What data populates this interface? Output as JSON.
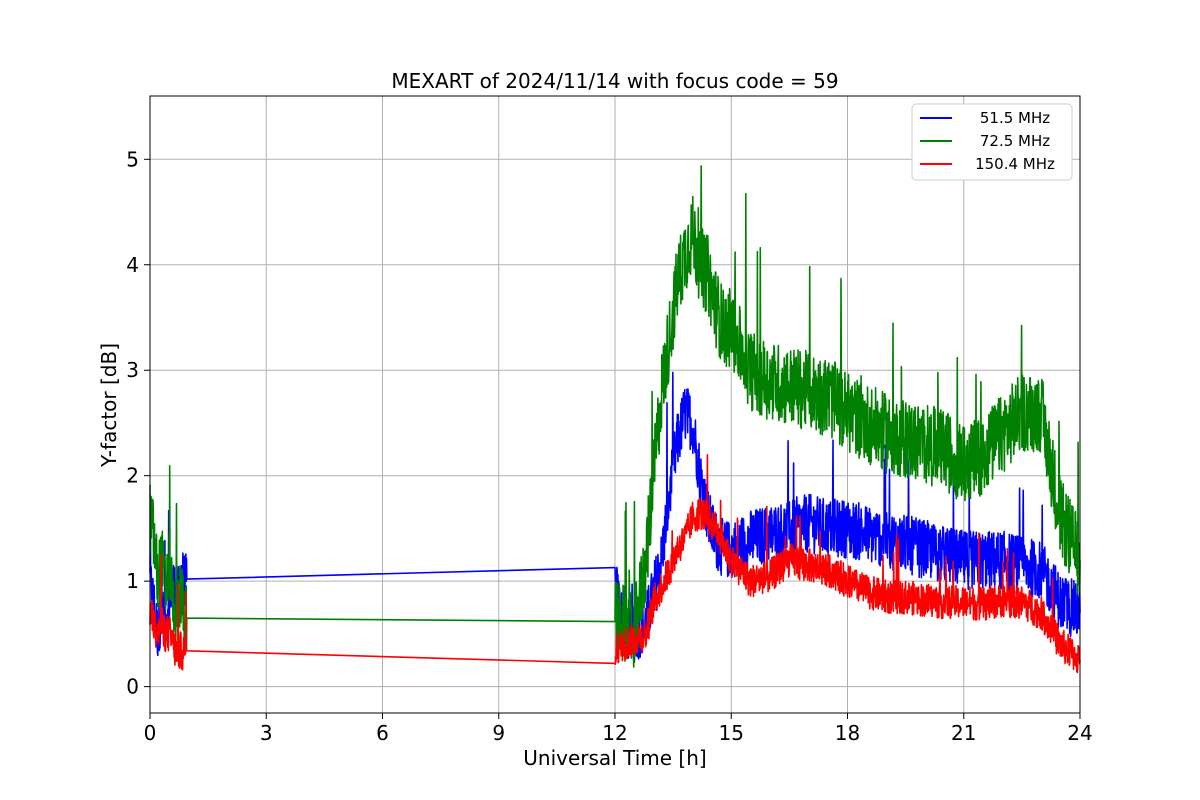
{
  "chart_data": {
    "type": "line",
    "title": "MEXART of 2024/11/14 with focus code = 59",
    "xlabel": "Universal Time [h]",
    "ylabel": "Y-factor [dB]",
    "xlim": [
      0,
      24
    ],
    "ylim": [
      -0.25,
      5.6
    ],
    "x_ticks": [
      0,
      3,
      6,
      9,
      12,
      15,
      18,
      21,
      24
    ],
    "x_tick_labels": [
      "0",
      "3",
      "6",
      "9",
      "12",
      "15",
      "18",
      "21",
      "24"
    ],
    "y_ticks": [
      0,
      1,
      2,
      3,
      4,
      5
    ],
    "y_tick_labels": [
      "0",
      "1",
      "2",
      "3",
      "4",
      "5"
    ],
    "grid": true,
    "legend_position": "top-right",
    "series": [
      {
        "name": "51.5 MHz",
        "color": "#0000ff",
        "x": [
          0.0,
          0.1,
          0.2,
          0.3,
          0.4,
          0.5,
          0.6,
          0.7,
          0.8,
          0.9,
          0.95,
          12.0,
          12.2,
          12.5,
          12.8,
          13.0,
          13.2,
          13.4,
          13.6,
          13.8,
          14.0,
          14.2,
          14.4,
          14.6,
          14.8,
          15.0,
          15.5,
          16.0,
          16.5,
          17.0,
          17.5,
          18.0,
          18.5,
          19.0,
          19.5,
          20.0,
          20.5,
          21.0,
          21.5,
          22.0,
          22.5,
          23.0,
          23.5,
          24.0
        ],
        "y": [
          1.0,
          0.8,
          0.5,
          0.7,
          0.6,
          0.9,
          1.0,
          0.8,
          1.1,
          1.0,
          1.02,
          0.97,
          0.6,
          0.5,
          0.6,
          0.9,
          1.2,
          1.8,
          2.3,
          2.6,
          2.5,
          2.0,
          1.6,
          1.4,
          1.3,
          1.3,
          1.4,
          1.45,
          1.5,
          1.55,
          1.5,
          1.5,
          1.45,
          1.4,
          1.35,
          1.3,
          1.25,
          1.2,
          1.2,
          1.2,
          1.15,
          1.1,
          0.8,
          0.7
        ]
      },
      {
        "name": "72.5 MHz",
        "color": "#008000",
        "x": [
          0.0,
          0.1,
          0.2,
          0.3,
          0.4,
          0.5,
          0.6,
          0.7,
          0.8,
          0.9,
          0.95,
          12.0,
          12.2,
          12.5,
          12.8,
          13.0,
          13.2,
          13.4,
          13.6,
          13.8,
          14.0,
          14.2,
          14.4,
          14.6,
          14.8,
          15.0,
          15.5,
          16.0,
          16.5,
          17.0,
          17.5,
          18.0,
          18.5,
          19.0,
          19.5,
          20.0,
          20.5,
          21.0,
          21.5,
          22.0,
          22.5,
          23.0,
          23.5,
          24.0
        ],
        "y": [
          1.6,
          1.4,
          1.0,
          1.2,
          0.9,
          1.2,
          0.8,
          0.7,
          0.9,
          0.7,
          0.65,
          0.64,
          0.6,
          0.5,
          1.2,
          2.0,
          2.8,
          3.3,
          3.8,
          4.1,
          4.3,
          4.0,
          3.9,
          3.6,
          3.4,
          3.4,
          3.0,
          2.9,
          2.85,
          2.8,
          2.75,
          2.6,
          2.5,
          2.4,
          2.35,
          2.3,
          2.25,
          2.1,
          2.2,
          2.4,
          2.6,
          2.6,
          1.6,
          1.2
        ]
      },
      {
        "name": "150.4 MHz",
        "color": "#ff0000",
        "x": [
          0.0,
          0.1,
          0.2,
          0.3,
          0.4,
          0.5,
          0.6,
          0.7,
          0.8,
          0.9,
          0.95,
          12.0,
          12.2,
          12.5,
          12.8,
          13.0,
          13.2,
          13.4,
          13.6,
          13.8,
          14.0,
          14.2,
          14.4,
          14.6,
          14.8,
          15.0,
          15.5,
          16.0,
          16.5,
          17.0,
          17.5,
          18.0,
          18.5,
          19.0,
          19.5,
          20.0,
          20.5,
          21.0,
          21.5,
          22.0,
          22.5,
          23.0,
          23.5,
          24.0
        ],
        "y": [
          0.7,
          0.6,
          0.5,
          0.6,
          0.5,
          0.5,
          0.4,
          0.3,
          0.35,
          0.3,
          0.34,
          0.34,
          0.4,
          0.45,
          0.5,
          0.8,
          0.95,
          1.1,
          1.3,
          1.4,
          1.6,
          1.65,
          1.6,
          1.5,
          1.35,
          1.2,
          1.0,
          1.05,
          1.2,
          1.15,
          1.1,
          1.0,
          0.9,
          0.85,
          0.85,
          0.82,
          0.8,
          0.8,
          0.78,
          0.82,
          0.8,
          0.7,
          0.4,
          0.25
        ]
      }
    ]
  }
}
